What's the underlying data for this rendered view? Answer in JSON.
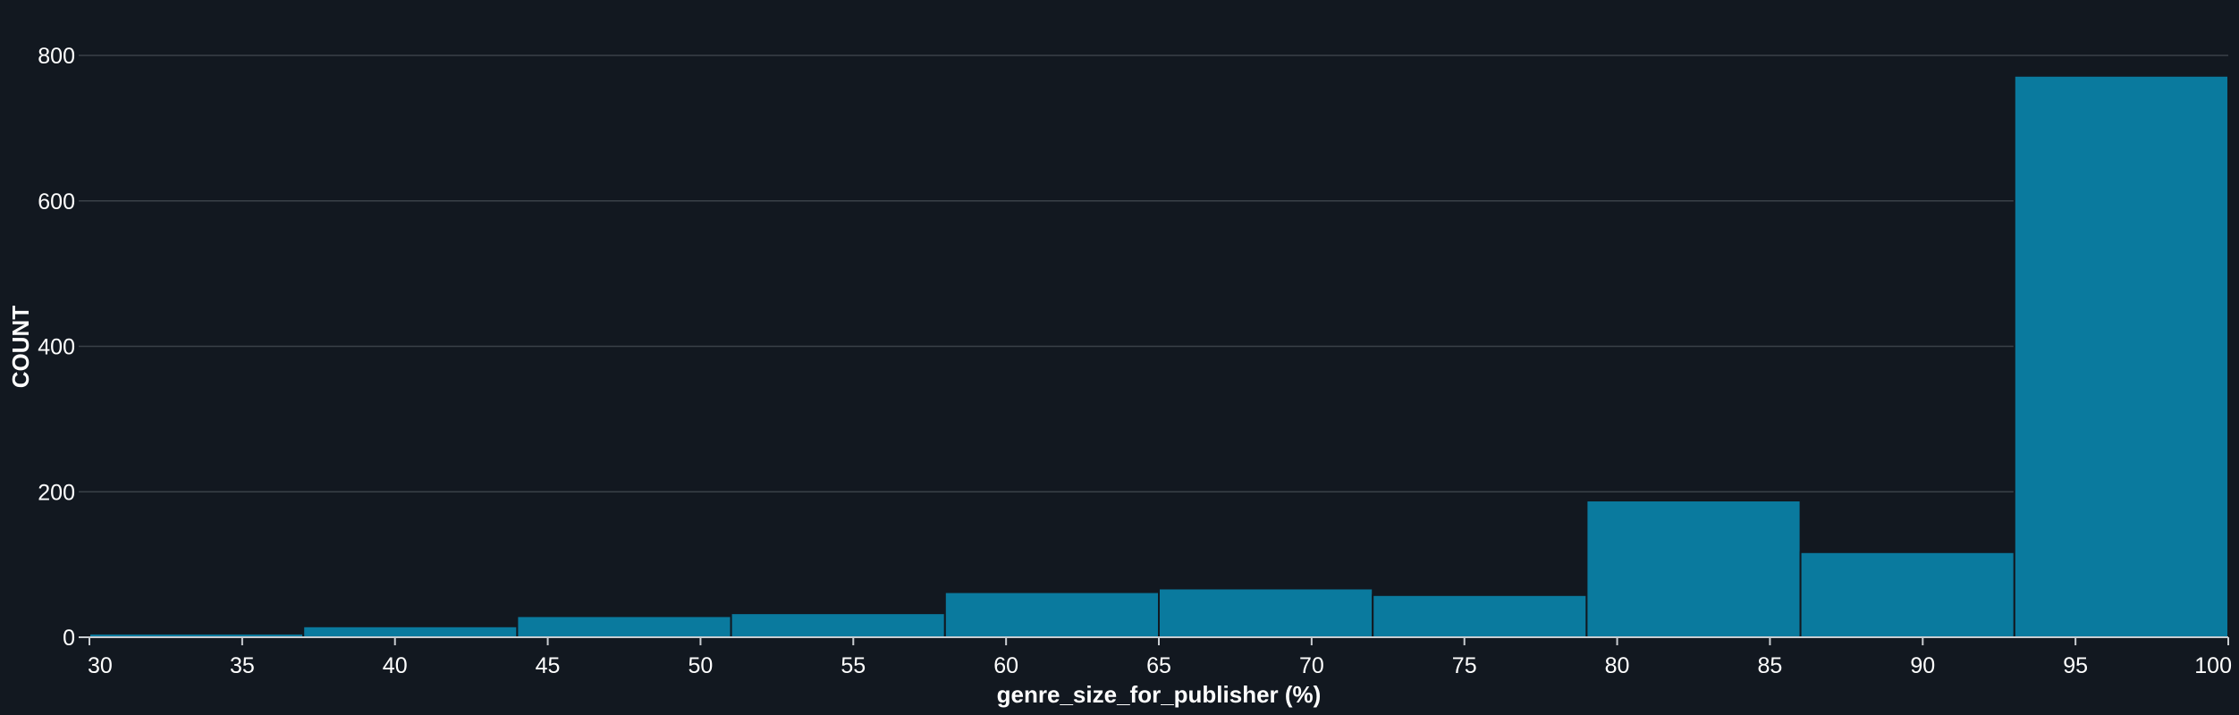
{
  "chart_data": {
    "type": "bar",
    "title": "",
    "xlabel": "genre_size_for_publisher (%)",
    "ylabel": "COUNT",
    "xlim": [
      30,
      100
    ],
    "ylim": [
      0,
      800
    ],
    "x_ticks": [
      "30",
      "35",
      "40",
      "45",
      "50",
      "55",
      "60",
      "65",
      "70",
      "75",
      "80",
      "85",
      "90",
      "95",
      "100"
    ],
    "y_ticks": [
      "0",
      "200",
      "400",
      "600",
      "800"
    ],
    "grid": true,
    "bins": [
      {
        "x0": 30,
        "x1": 37,
        "value": 5
      },
      {
        "x0": 37,
        "x1": 44,
        "value": 15
      },
      {
        "x0": 44,
        "x1": 51,
        "value": 29
      },
      {
        "x0": 51,
        "x1": 58,
        "value": 33
      },
      {
        "x0": 58,
        "x1": 65,
        "value": 62
      },
      {
        "x0": 65,
        "x1": 72,
        "value": 67
      },
      {
        "x0": 72,
        "x1": 79,
        "value": 58
      },
      {
        "x0": 79,
        "x1": 86,
        "value": 188
      },
      {
        "x0": 86,
        "x1": 93,
        "value": 117
      },
      {
        "x0": 93,
        "x1": 100,
        "value": 772
      }
    ],
    "colors": {
      "bar": "#0a7a9e",
      "background": "#121820",
      "grid": "#3a4148"
    }
  }
}
